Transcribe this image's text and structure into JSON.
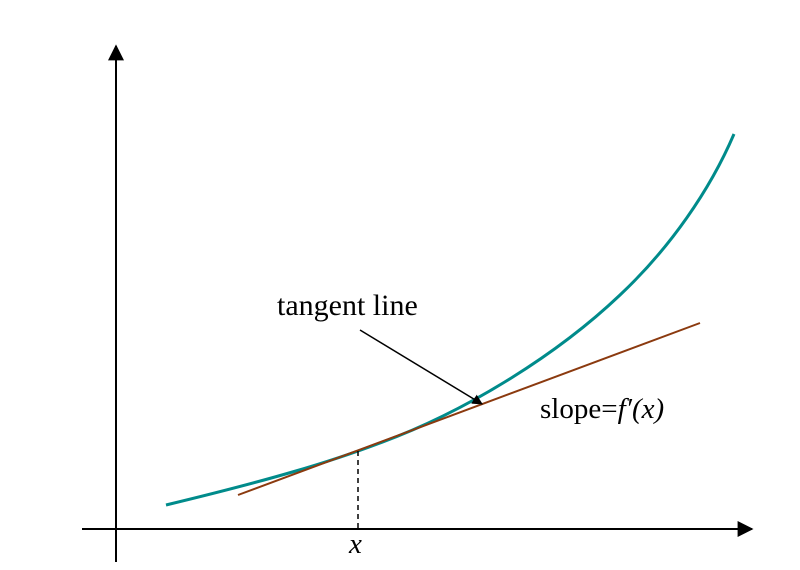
{
  "diagram": {
    "annotation_label": "tangent line",
    "slope_text": "slope=",
    "slope_expr": "f′(x)",
    "x_label": "x"
  },
  "colors": {
    "curve": "#008b8b",
    "tangent": "#8b3a0f",
    "axes": "#000000",
    "text": "#000000"
  }
}
